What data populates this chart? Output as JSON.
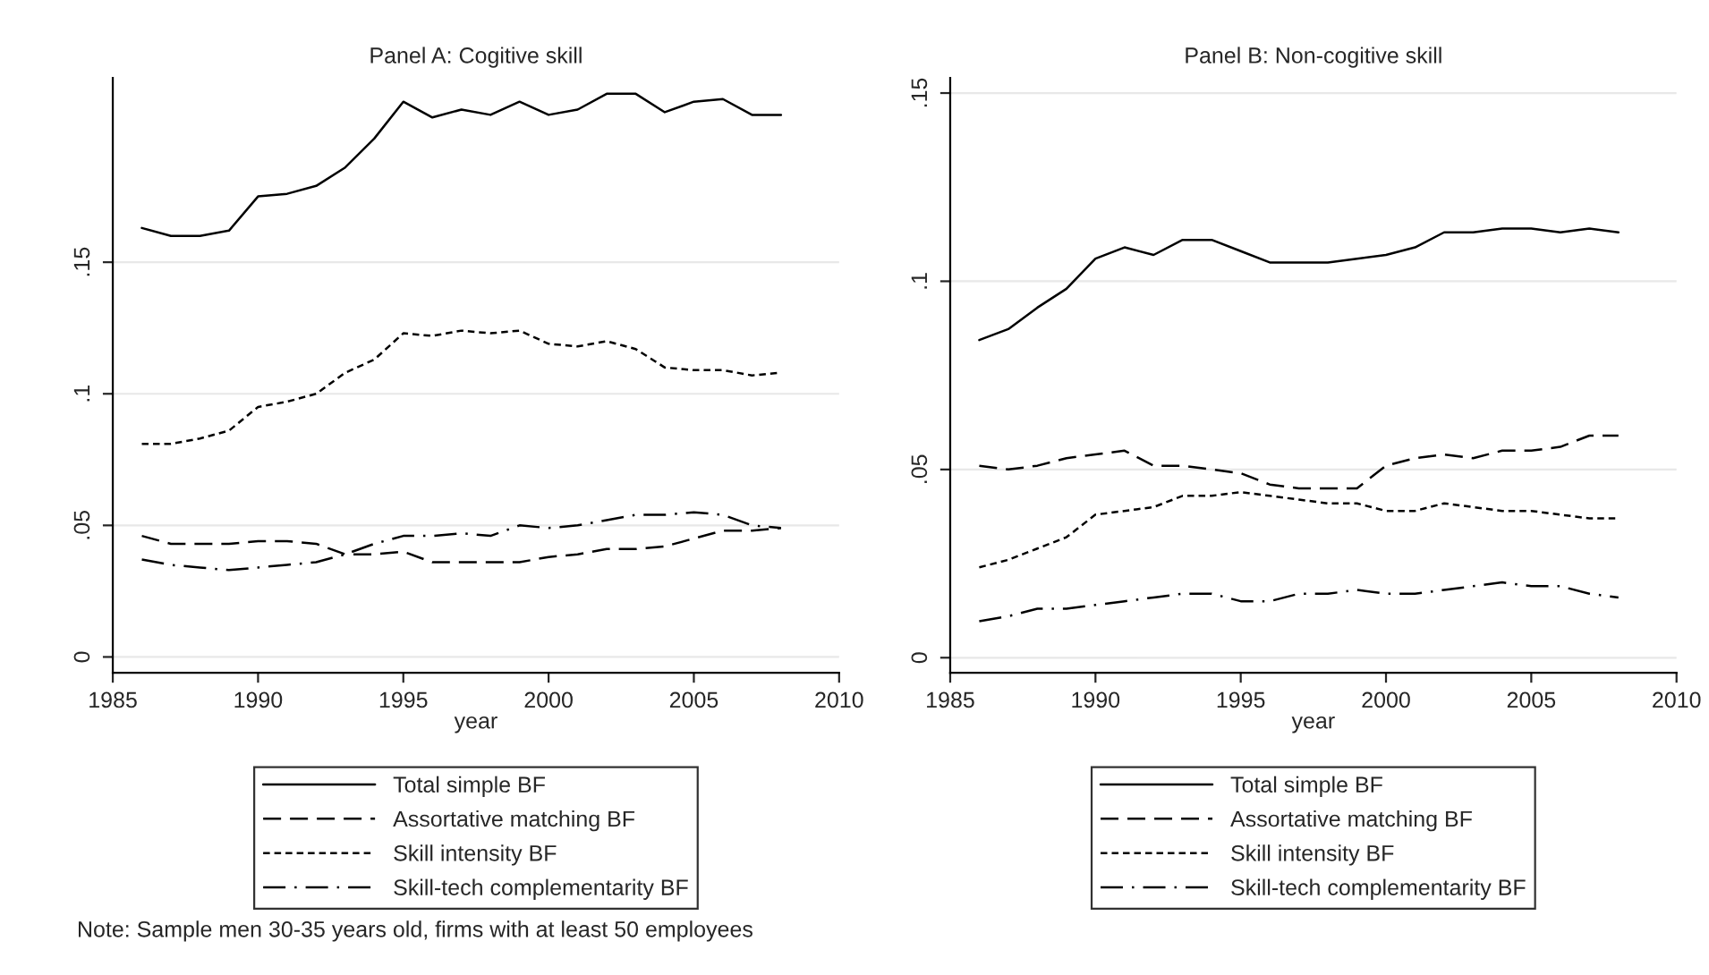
{
  "chart_data": [
    {
      "type": "line",
      "title": "Panel A: Cogitive skill",
      "xlabel": "year",
      "x": [
        1986,
        1987,
        1988,
        1989,
        1990,
        1991,
        1992,
        1993,
        1994,
        1995,
        1996,
        1997,
        1998,
        1999,
        2000,
        2001,
        2002,
        2003,
        2004,
        2005,
        2006,
        2007,
        2008
      ],
      "xlim": [
        1985,
        2010
      ],
      "xticks": [
        1985,
        1990,
        1995,
        2000,
        2005,
        2010
      ],
      "ylim": [
        -0.006,
        0.22
      ],
      "yticks": [
        0,
        {
          "value": 0.05,
          "label": ".05"
        },
        {
          "value": 0.1,
          "label": ".1"
        },
        {
          "value": 0.15,
          "label": ".15"
        }
      ],
      "grid": "y",
      "legend": "bottom",
      "marker": "none",
      "series": [
        {
          "name": "Total simple BF",
          "color": "#000000",
          "line_style": "solid",
          "values": [
            0.163,
            0.16,
            0.16,
            0.162,
            0.175,
            0.176,
            0.179,
            0.186,
            0.197,
            0.211,
            0.205,
            0.208,
            0.206,
            0.211,
            0.206,
            0.208,
            0.214,
            0.214,
            0.207,
            0.211,
            0.212,
            0.206,
            0.206
          ]
        },
        {
          "name": "Assortative matching BF",
          "color": "#000000",
          "line_style": "dashed",
          "values": [
            0.046,
            0.043,
            0.043,
            0.043,
            0.044,
            0.044,
            0.043,
            0.039,
            0.039,
            0.04,
            0.036,
            0.036,
            0.036,
            0.036,
            0.038,
            0.039,
            0.041,
            0.041,
            0.042,
            0.045,
            0.048,
            0.048,
            0.049
          ]
        },
        {
          "name": "Skill intensity BF",
          "color": "#000000",
          "line_style": "dotted",
          "values": [
            0.081,
            0.081,
            0.083,
            0.086,
            0.095,
            0.097,
            0.1,
            0.108,
            0.113,
            0.123,
            0.122,
            0.124,
            0.123,
            0.124,
            0.119,
            0.118,
            0.12,
            0.117,
            0.11,
            0.109,
            0.109,
            0.107,
            0.108
          ]
        },
        {
          "name": "Skill-tech complementarity BF",
          "color": "#000000",
          "line_style": "dashdot",
          "values": [
            0.037,
            0.035,
            0.034,
            0.033,
            0.034,
            0.035,
            0.036,
            0.039,
            0.043,
            0.046,
            0.046,
            0.047,
            0.046,
            0.05,
            0.049,
            0.05,
            0.052,
            0.054,
            0.054,
            0.055,
            0.054,
            0.05,
            0.049
          ]
        }
      ],
      "annotations": [
        "Note: Sample men 30-35 years old, firms with at least 50 employees"
      ]
    },
    {
      "type": "line",
      "title": "Panel B: Non-cogitive skill",
      "xlabel": "year",
      "x": [
        1986,
        1987,
        1988,
        1989,
        1990,
        1991,
        1992,
        1993,
        1994,
        1995,
        1996,
        1997,
        1998,
        1999,
        2000,
        2001,
        2002,
        2003,
        2004,
        2005,
        2006,
        2007,
        2008
      ],
      "xlim": [
        1985,
        2010
      ],
      "xticks": [
        1985,
        1990,
        1995,
        2000,
        2005,
        2010
      ],
      "ylim": [
        -0.004,
        0.154
      ],
      "yticks": [
        0,
        {
          "value": 0.05,
          "label": ".05"
        },
        {
          "value": 0.1,
          "label": ".1"
        },
        {
          "value": 0.15,
          "label": ".15"
        }
      ],
      "grid": "y",
      "legend": "bottom",
      "marker": "none",
      "series": [
        {
          "name": "Total simple BF",
          "color": "#000000",
          "line_style": "solid",
          "values": [
            0.0844,
            0.0873,
            0.093,
            0.098,
            0.106,
            0.109,
            0.107,
            0.111,
            0.111,
            0.108,
            0.105,
            0.105,
            0.105,
            0.106,
            0.107,
            0.109,
            0.113,
            0.113,
            0.114,
            0.114,
            0.113,
            0.114,
            0.113
          ]
        },
        {
          "name": "Assortative matching BF",
          "color": "#000000",
          "line_style": "dashed",
          "values": [
            0.051,
            0.05,
            0.051,
            0.053,
            0.054,
            0.055,
            0.051,
            0.051,
            0.05,
            0.049,
            0.046,
            0.045,
            0.045,
            0.045,
            0.051,
            0.053,
            0.054,
            0.053,
            0.055,
            0.055,
            0.056,
            0.059,
            0.059
          ]
        },
        {
          "name": "Skill intensity BF",
          "color": "#000000",
          "line_style": "dotted",
          "values": [
            0.024,
            0.026,
            0.029,
            0.032,
            0.038,
            0.039,
            0.04,
            0.043,
            0.043,
            0.044,
            0.043,
            0.042,
            0.041,
            0.041,
            0.039,
            0.039,
            0.041,
            0.04,
            0.039,
            0.039,
            0.038,
            0.037,
            0.037
          ]
        },
        {
          "name": "Skill-tech complementarity BF",
          "color": "#000000",
          "line_style": "dashdot",
          "values": [
            0.0097,
            0.011,
            0.013,
            0.013,
            0.014,
            0.015,
            0.016,
            0.017,
            0.017,
            0.015,
            0.015,
            0.017,
            0.017,
            0.018,
            0.017,
            0.017,
            0.018,
            0.019,
            0.02,
            0.019,
            0.019,
            0.017,
            0.016
          ]
        }
      ]
    }
  ]
}
